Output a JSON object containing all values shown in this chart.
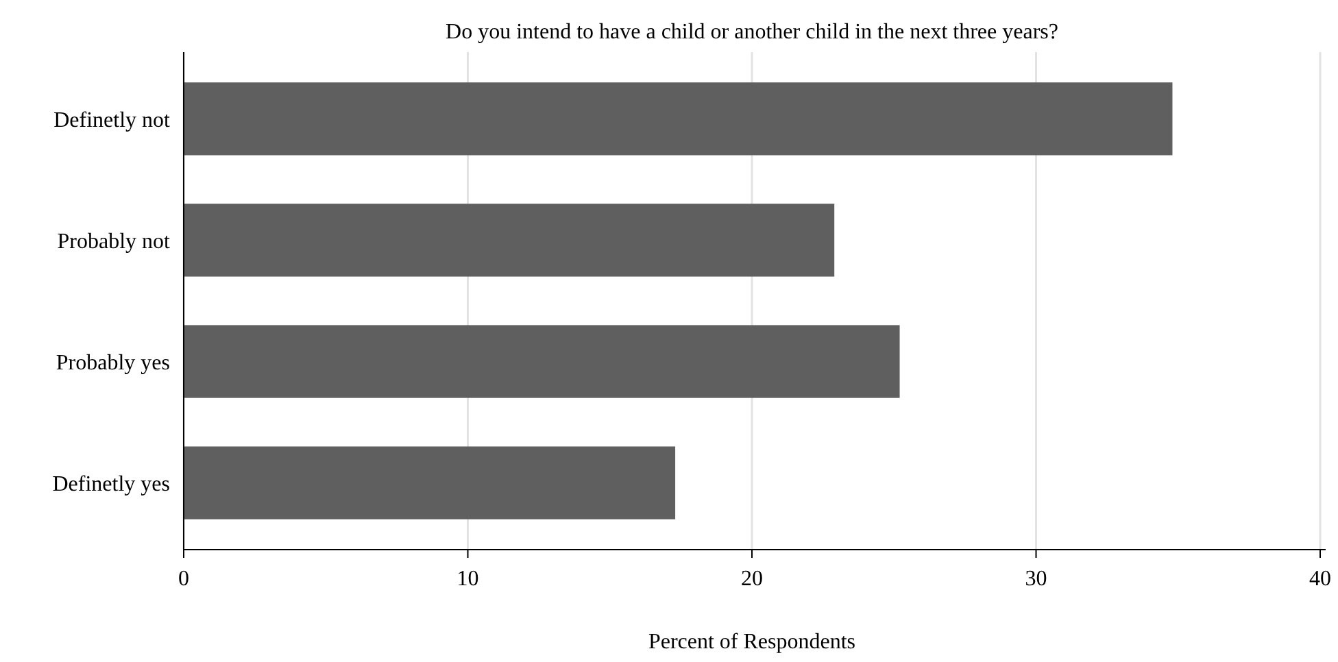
{
  "chart_data": {
    "type": "bar",
    "orientation": "horizontal",
    "title": "Do you intend to have a child or another child in the next three years?",
    "xlabel": "Percent of Respondents",
    "categories": [
      "Definetly not",
      "Probably not",
      "Probably yes",
      "Definetly yes"
    ],
    "values": [
      34.8,
      22.9,
      25.2,
      17.3
    ],
    "color": "#5f5f5f",
    "xlim": [
      0,
      40
    ],
    "xticks": [
      0,
      10,
      20,
      30,
      40
    ],
    "grid": "x"
  }
}
